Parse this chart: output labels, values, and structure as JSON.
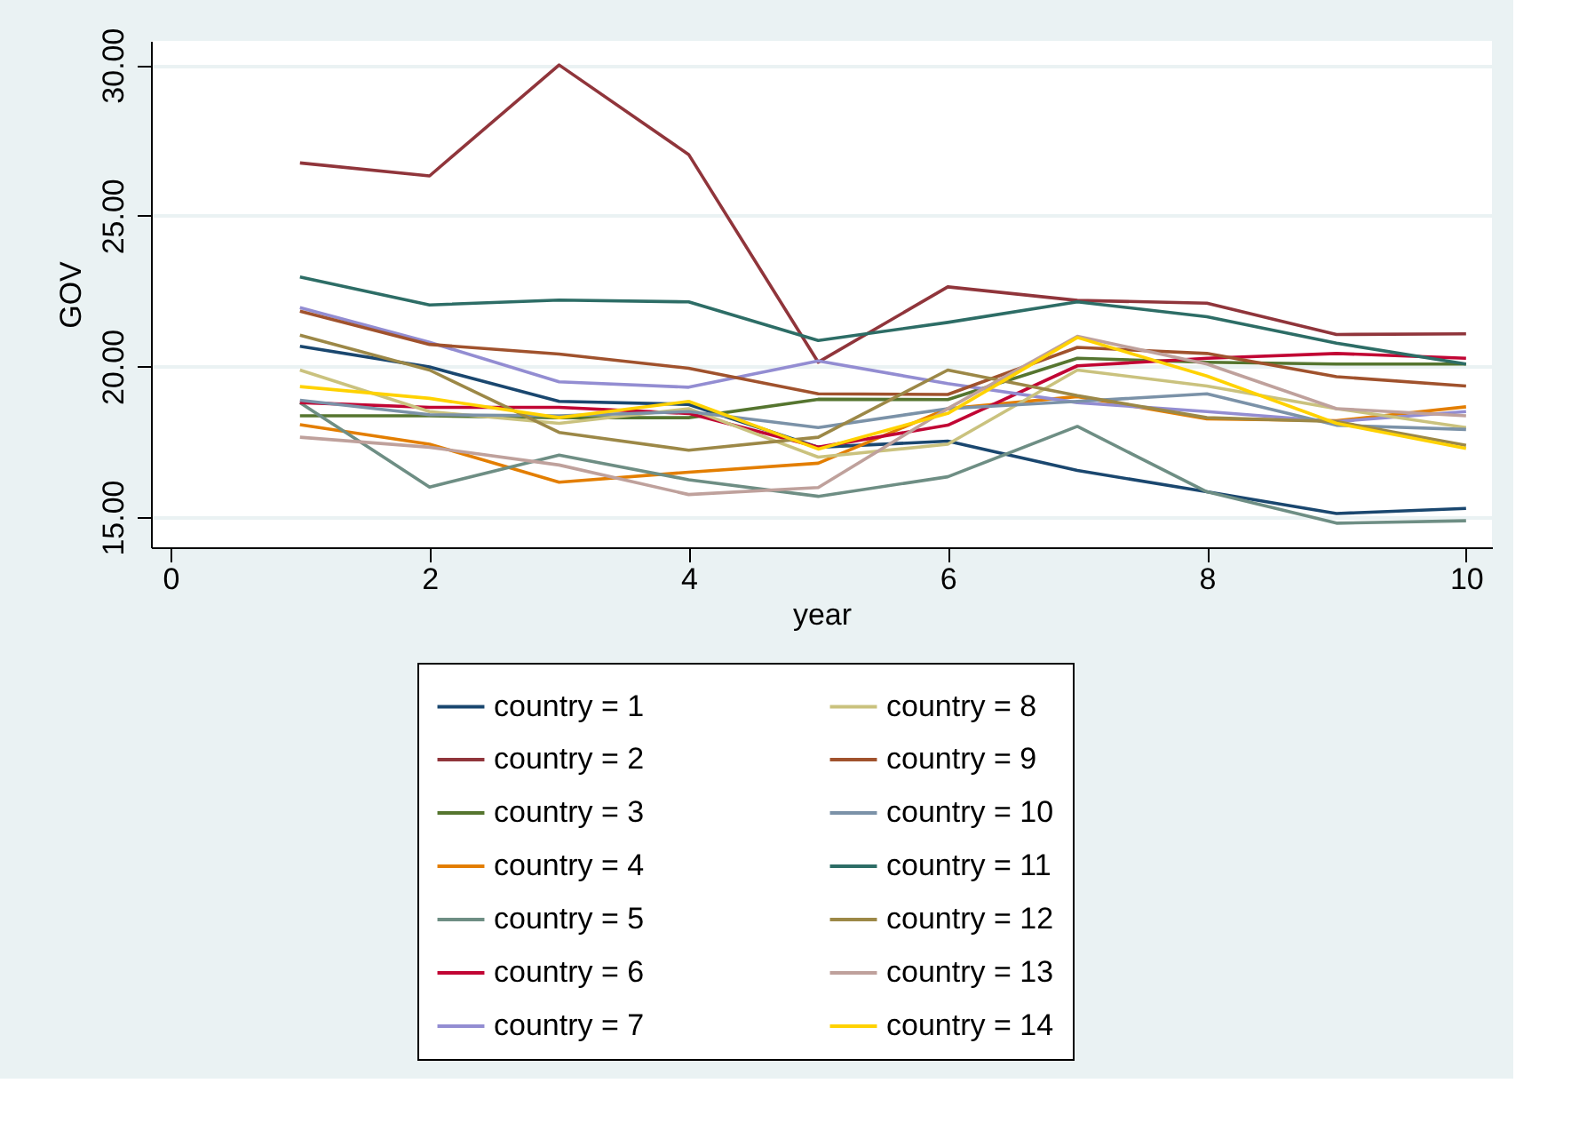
{
  "chart_data": {
    "type": "line",
    "xlabel": "year",
    "ylabel": "GOV",
    "x": [
      1,
      2,
      3,
      4,
      5,
      6,
      7,
      8,
      9,
      10
    ],
    "xlim": [
      -0.15,
      10.2
    ],
    "xticks": [
      0,
      2,
      4,
      6,
      8,
      10
    ],
    "ylim": [
      14,
      30.8
    ],
    "yticks": [
      {
        "value": 15,
        "label": "15.00"
      },
      {
        "value": 20,
        "label": "20.00"
      },
      {
        "value": 25,
        "label": "25.00"
      },
      {
        "value": 30,
        "label": "30.00"
      }
    ],
    "grid": "y",
    "legend": "bottom",
    "marker": "none",
    "line_style": "solid",
    "series": [
      {
        "name": "country = 1",
        "color": "#1a476f",
        "values": [
          20.67,
          19.98,
          18.84,
          18.74,
          17.32,
          17.52,
          16.55,
          15.84,
          15.12,
          15.29
        ]
      },
      {
        "name": "country = 2",
        "color": "#90353b",
        "values": [
          26.75,
          26.32,
          30.0,
          27.03,
          20.14,
          22.64,
          22.19,
          22.1,
          21.06,
          21.08
        ]
      },
      {
        "name": "country = 3",
        "color": "#55752f",
        "values": [
          18.36,
          18.36,
          18.3,
          18.3,
          18.91,
          18.9,
          20.27,
          20.14,
          20.08,
          20.08
        ]
      },
      {
        "name": "country = 4",
        "color": "#e37e00",
        "values": [
          18.07,
          17.42,
          16.16,
          16.49,
          16.79,
          18.6,
          19.0,
          18.26,
          18.2,
          18.66
        ]
      },
      {
        "name": "country = 5",
        "color": "#6e8e84",
        "values": [
          18.8,
          16.0,
          17.06,
          16.24,
          15.69,
          16.34,
          18.01,
          15.84,
          14.8,
          14.88
        ]
      },
      {
        "name": "country = 6",
        "color": "#c10534",
        "values": [
          18.8,
          18.64,
          18.64,
          18.44,
          17.32,
          18.05,
          20.02,
          20.27,
          20.43,
          20.27
        ]
      },
      {
        "name": "country = 7",
        "color": "#938dd2",
        "values": [
          21.95,
          20.8,
          19.49,
          19.31,
          20.18,
          19.43,
          18.8,
          18.5,
          18.17,
          18.5
        ]
      },
      {
        "name": "country = 8",
        "color": "#cac27e",
        "values": [
          19.88,
          18.5,
          18.11,
          18.6,
          16.99,
          17.42,
          19.88,
          19.35,
          18.6,
          17.97
        ]
      },
      {
        "name": "country = 9",
        "color": "#a0522d",
        "values": [
          21.83,
          20.73,
          20.41,
          19.94,
          19.09,
          19.07,
          20.63,
          20.43,
          19.66,
          19.35
        ]
      },
      {
        "name": "country = 10",
        "color": "#7b92a8",
        "values": [
          18.88,
          18.4,
          18.36,
          18.5,
          17.97,
          18.6,
          18.84,
          19.09,
          18.05,
          17.91
        ]
      },
      {
        "name": "country = 11",
        "color": "#2d6d66",
        "values": [
          22.97,
          22.04,
          22.2,
          22.14,
          20.86,
          21.46,
          22.14,
          21.65,
          20.77,
          20.08
        ]
      },
      {
        "name": "country = 12",
        "color": "#9c8847",
        "values": [
          21.04,
          19.88,
          17.81,
          17.22,
          17.65,
          19.88,
          19.03,
          18.3,
          18.17,
          17.38
        ]
      },
      {
        "name": "country = 13",
        "color": "#bfa19c",
        "values": [
          17.65,
          17.32,
          16.73,
          15.75,
          15.98,
          18.6,
          21.0,
          20.08,
          18.6,
          18.36
        ]
      },
      {
        "name": "country = 14",
        "color": "#ffd200",
        "values": [
          19.33,
          18.94,
          18.3,
          18.84,
          17.26,
          18.44,
          20.96,
          19.68,
          18.11,
          17.28
        ]
      }
    ]
  }
}
